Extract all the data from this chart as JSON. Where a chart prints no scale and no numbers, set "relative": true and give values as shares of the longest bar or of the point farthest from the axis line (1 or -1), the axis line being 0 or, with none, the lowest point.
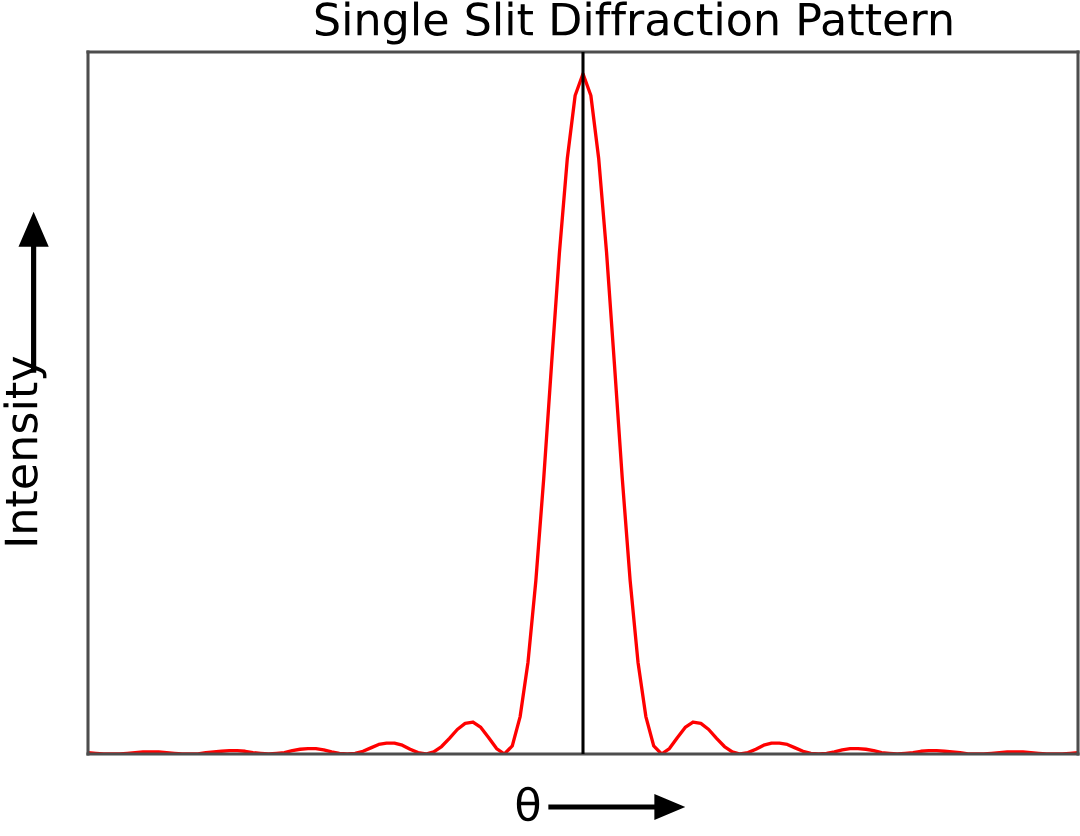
{
  "chart_data": {
    "type": "line",
    "title": "Single Slit Diffraction Pattern",
    "xlabel": "θ",
    "ylabel": "Intensity",
    "relative": true,
    "tick_labels": false,
    "categories": [
      null,
      null,
      null,
      null,
      null,
      null,
      null,
      null,
      null,
      null,
      null,
      null,
      null,
      null,
      null,
      null,
      null,
      null,
      null,
      null,
      null,
      null,
      null,
      null,
      null,
      null,
      null,
      null,
      null,
      null,
      null,
      null,
      null,
      null,
      null,
      null,
      null,
      null,
      null,
      null,
      null,
      null,
      null,
      null,
      null,
      null,
      null,
      null,
      null,
      null,
      null,
      null,
      null,
      null,
      null,
      null,
      null,
      null,
      null,
      null,
      null,
      null,
      null,
      null,
      null,
      null,
      null,
      null,
      null,
      null,
      null,
      null,
      null,
      null,
      null,
      null,
      null,
      null,
      null,
      null,
      null,
      null,
      null,
      null,
      null,
      null,
      null,
      null,
      null,
      null,
      null,
      null,
      null,
      null,
      null,
      null,
      null,
      null,
      null,
      null,
      null,
      null,
      null,
      null,
      null,
      null,
      null,
      null,
      null,
      null,
      null,
      null,
      null,
      null,
      null,
      null,
      null,
      null,
      null,
      null,
      null,
      null,
      null,
      null,
      null,
      null,
      null
    ],
    "series": [
      {
        "color": "#ff0000",
        "values": [
          0.002,
          0.001,
          0,
          0,
          0,
          0.001,
          0.002,
          0.003,
          0.003,
          0.003,
          0.002,
          0.001,
          0,
          0,
          0,
          0.002,
          0.003,
          0.004,
          0.005,
          0.005,
          0.004,
          0.002,
          0.001,
          0,
          0.001,
          0.002,
          0.005,
          0.007,
          0.008,
          0.008,
          0.006,
          0.003,
          0.001,
          0,
          0.001,
          0.004,
          0.009,
          0.014,
          0.016,
          0.016,
          0.013,
          0.007,
          0.002,
          0,
          0.003,
          0.011,
          0.023,
          0.036,
          0.045,
          0.047,
          0.039,
          0.024,
          0.008,
          0,
          0.012,
          0.055,
          0.135,
          0.255,
          0.405,
          0.573,
          0.737,
          0.875,
          0.968,
          1,
          0.968,
          0.875,
          0.737,
          0.573,
          0.405,
          0.255,
          0.135,
          0.055,
          0.012,
          0,
          0.008,
          0.024,
          0.039,
          0.047,
          0.045,
          0.036,
          0.023,
          0.011,
          0.003,
          0,
          0.002,
          0.007,
          0.013,
          0.016,
          0.016,
          0.014,
          0.009,
          0.004,
          0.001,
          0,
          0.001,
          0.003,
          0.006,
          0.008,
          0.008,
          0.007,
          0.005,
          0.002,
          0.001,
          0,
          0.001,
          0.002,
          0.004,
          0.005,
          0.005,
          0.004,
          0.003,
          0.002,
          0,
          0,
          0,
          0.001,
          0.002,
          0.003,
          0.003,
          0.003,
          0.002,
          0.001,
          0,
          0,
          0,
          0.001,
          0.002
        ]
      }
    ]
  }
}
